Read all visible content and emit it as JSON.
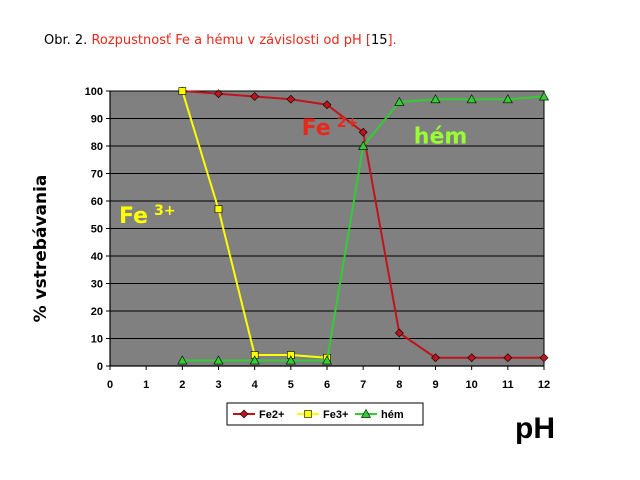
{
  "caption": {
    "prefix": "Obr. 2. ",
    "title": "Rozpustnosť Fe a hému v závislosti od pH ",
    "ref_open": "[",
    "ref_num": "15",
    "ref_close": "]."
  },
  "chart_data": {
    "type": "line",
    "xlabel": "pH",
    "ylabel": "% vstrebávania",
    "xlim": [
      0,
      12
    ],
    "ylim": [
      0,
      100
    ],
    "xticks": [
      0,
      1,
      2,
      3,
      4,
      5,
      6,
      7,
      8,
      9,
      10,
      11,
      12
    ],
    "yticks": [
      0,
      10,
      20,
      30,
      40,
      50,
      60,
      70,
      80,
      90,
      100
    ],
    "grid": true,
    "plot_background": "#808080",
    "legend_position": "bottom",
    "series": [
      {
        "name": "Fe2+",
        "color": "#c0141c",
        "marker": "diamond",
        "points": [
          [
            2,
            100
          ],
          [
            3,
            99
          ],
          [
            4,
            98
          ],
          [
            5,
            97
          ],
          [
            6,
            95
          ],
          [
            7,
            85
          ],
          [
            8,
            12
          ],
          [
            9,
            3
          ],
          [
            10,
            3
          ],
          [
            11,
            3
          ],
          [
            12,
            3
          ]
        ]
      },
      {
        "name": "Fe3+",
        "color": "#ffff00",
        "marker": "square",
        "points": [
          [
            2,
            100
          ],
          [
            3,
            57
          ],
          [
            4,
            4
          ],
          [
            5,
            4
          ],
          [
            6,
            3
          ]
        ]
      },
      {
        "name": "hém",
        "color": "#33cc33",
        "marker": "triangle",
        "points": [
          [
            2,
            2
          ],
          [
            3,
            2
          ],
          [
            4,
            2
          ],
          [
            5,
            2
          ],
          [
            6,
            2
          ],
          [
            7,
            80
          ],
          [
            8,
            96
          ],
          [
            9,
            97
          ],
          [
            10,
            97
          ],
          [
            11,
            97
          ],
          [
            12,
            98
          ]
        ]
      }
    ],
    "annotations": [
      {
        "base": "Fe",
        "sup": "2+",
        "color": "#e8281a",
        "x": 5.3,
        "y": 84
      },
      {
        "base": "Fe",
        "sup": "3+",
        "color": "#ffff00",
        "x": 0.25,
        "y": 52
      },
      {
        "base": "hém",
        "sup": "",
        "color": "#99ff33",
        "x": 8.4,
        "y": 81
      }
    ]
  }
}
